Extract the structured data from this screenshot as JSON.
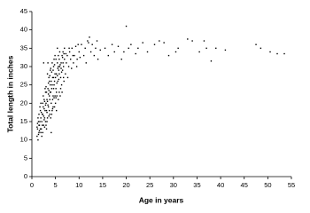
{
  "chart_data": {
    "type": "scatter",
    "xlabel": "Age in years",
    "ylabel": "Total length in inches",
    "color": "#000000",
    "xlim": [
      0,
      55
    ],
    "xticks": [
      0,
      5,
      10,
      15,
      20,
      25,
      30,
      35,
      40,
      45,
      50,
      55
    ],
    "ylim": [
      0,
      45
    ],
    "yticks": [
      0,
      5,
      10,
      15,
      20,
      25,
      30,
      35,
      40,
      45
    ],
    "x": [
      1.1,
      1.2,
      1.3,
      1.4,
      1.5,
      1.5,
      1.6,
      1.7,
      1.8,
      1.9,
      1.2,
      1.4,
      1.6,
      1.8,
      1.9,
      1.3,
      1.7,
      1.1,
      1.5,
      1.9,
      2.0,
      2.1,
      2.2,
      2.3,
      2.4,
      2.5,
      2.6,
      2.7,
      2.8,
      2.9,
      2.1,
      2.3,
      2.5,
      2.7,
      2.9,
      2.2,
      2.4,
      2.6,
      2.8,
      2.0,
      2.5,
      2.3,
      2.7,
      2.9,
      2.6,
      3.0,
      3.1,
      3.2,
      3.3,
      3.4,
      3.5,
      3.6,
      3.7,
      3.8,
      3.9,
      3.0,
      3.1,
      3.2,
      3.3,
      3.4,
      3.5,
      3.6,
      3.7,
      3.8,
      3.9,
      3.1,
      3.3,
      3.5,
      3.7,
      3.9,
      3.4,
      3.6,
      3.2,
      3.8,
      3.0,
      4.0,
      4.1,
      4.2,
      4.3,
      4.4,
      4.5,
      4.6,
      4.7,
      4.8,
      4.9,
      4.0,
      4.1,
      4.2,
      4.3,
      4.4,
      4.5,
      4.6,
      4.7,
      4.8,
      4.9,
      4.2,
      4.4,
      4.6,
      4.8,
      4.1,
      4.3,
      4.5,
      4.7,
      4.9,
      4.0,
      5.0,
      5.1,
      5.2,
      5.3,
      5.4,
      5.5,
      5.6,
      5.7,
      5.8,
      5.9,
      5.0,
      5.1,
      5.2,
      5.3,
      5.4,
      5.5,
      5.6,
      5.7,
      5.8,
      5.9,
      5.2,
      5.4,
      5.6,
      5.8,
      5.1,
      6.0,
      6.1,
      6.2,
      6.3,
      6.4,
      6.5,
      6.6,
      6.7,
      6.8,
      6.9,
      6.1,
      6.3,
      6.5,
      6.7,
      6.9,
      6.2,
      6.4,
      6.6,
      6.8,
      6.0,
      7.1,
      7.3,
      7.5,
      7.8,
      8.0,
      8.2,
      8.5,
      8.8,
      9.0,
      9.3,
      9.6,
      10.0,
      7.6,
      8.4,
      9.8,
      7.2,
      8.7,
      9.5,
      10.2,
      7.9,
      10.5,
      11.0,
      11.3,
      11.8,
      12.2,
      12.5,
      12.8,
      13.2,
      13.5,
      14.0,
      14.5,
      11.5,
      12.0,
      13.8,
      15.5,
      16.2,
      17.0,
      17.5,
      18.3,
      19.0,
      19.5,
      20.0,
      20.5,
      21.0,
      22.0,
      22.5,
      23.5,
      24.5,
      26.0,
      27.0,
      28.0,
      29.0,
      30.5,
      31.0,
      33.0,
      34.0,
      35.5,
      36.5,
      37.0,
      38.0,
      39.0,
      41.0,
      47.5,
      48.5,
      50.5,
      52.0,
      53.5
    ],
    "values": [
      11,
      13,
      10,
      15,
      12,
      17,
      14,
      19,
      13,
      16,
      14.5,
      11.5,
      12.5,
      18,
      20,
      16,
      15,
      13.5,
      14,
      12,
      13,
      15,
      17,
      12,
      19,
      14,
      21,
      16,
      18,
      23,
      11,
      20,
      16.5,
      13.5,
      19.5,
      14,
      22,
      15.5,
      24,
      17.5,
      31,
      17,
      20.5,
      15,
      18.5,
      14,
      18,
      21,
      16,
      24,
      19,
      27,
      22,
      17,
      25,
      20,
      23,
      15,
      28,
      19.5,
      22.5,
      16.5,
      26,
      21,
      29,
      13,
      20.5,
      25.5,
      18,
      23,
      31,
      23.5,
      17.5,
      27.5,
      24.5,
      16,
      20,
      24,
      18,
      27,
      22,
      30,
      25,
      19,
      28,
      23,
      26,
      17,
      31,
      21,
      29,
      24,
      32,
      26,
      22,
      28.5,
      18.5,
      27,
      30.5,
      12,
      25,
      19,
      21.5,
      33,
      29.5,
      20,
      24,
      28,
      22,
      31,
      26,
      33,
      29,
      23,
      30,
      27,
      32,
      18,
      25.5,
      35,
      29.5,
      21,
      26.5,
      32,
      34,
      23,
      27.5,
      30,
      28,
      21.5,
      22,
      27,
      31,
      25,
      33,
      29,
      34,
      30,
      26,
      32,
      24,
      28.5,
      32.5,
      27,
      35,
      29.5,
      23,
      31,
      33.5,
      30.5,
      28,
      31,
      33,
      30,
      34,
      32,
      35,
      31,
      33,
      35.5,
      32,
      34,
      27,
      29.5,
      36,
      33.5,
      33,
      30,
      32.5,
      35,
      36,
      33,
      35,
      37,
      38,
      34,
      36,
      33,
      35,
      32,
      34.5,
      31,
      36.5,
      37,
      35,
      33,
      36,
      34,
      35.5,
      32,
      34,
      41,
      35,
      36,
      33.5,
      35,
      36.5,
      34,
      36,
      37,
      36.5,
      33,
      34,
      35,
      37.5,
      37,
      34,
      37,
      35,
      31.5,
      35,
      34.5,
      36,
      35,
      34,
      33.5,
      33.5
    ]
  }
}
